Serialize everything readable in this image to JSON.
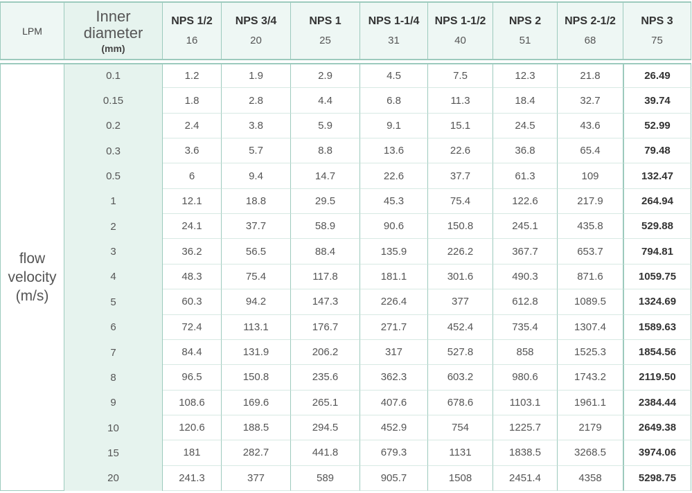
{
  "header": {
    "lpm": "LPM",
    "inner": "Inner diameter",
    "unit": "(mm)",
    "columns": [
      {
        "name": "NPS 1/2",
        "diameter": "16"
      },
      {
        "name": "NPS 3/4",
        "diameter": "20"
      },
      {
        "name": "NPS 1",
        "diameter": "25"
      },
      {
        "name": "NPS 1-1/4",
        "diameter": "31"
      },
      {
        "name": "NPS 1-1/2",
        "diameter": "40"
      },
      {
        "name": "NPS 2",
        "diameter": "51"
      },
      {
        "name": "NPS 2-1/2",
        "diameter": "68"
      },
      {
        "name": "NPS 3",
        "diameter": "75"
      }
    ]
  },
  "body": {
    "label": "flow velocity (m/s)",
    "rows": [
      {
        "velocity": "0.1",
        "values": [
          "1.2",
          "1.9",
          "2.9",
          "4.5",
          "7.5",
          "12.3",
          "21.8",
          "26.49"
        ]
      },
      {
        "velocity": "0.15",
        "values": [
          "1.8",
          "2.8",
          "4.4",
          "6.8",
          "11.3",
          "18.4",
          "32.7",
          "39.74"
        ]
      },
      {
        "velocity": "0.2",
        "values": [
          "2.4",
          "3.8",
          "5.9",
          "9.1",
          "15.1",
          "24.5",
          "43.6",
          "52.99"
        ]
      },
      {
        "velocity": "0.3",
        "values": [
          "3.6",
          "5.7",
          "8.8",
          "13.6",
          "22.6",
          "36.8",
          "65.4",
          "79.48"
        ]
      },
      {
        "velocity": "0.5",
        "values": [
          "6",
          "9.4",
          "14.7",
          "22.6",
          "37.7",
          "61.3",
          "109",
          "132.47"
        ]
      },
      {
        "velocity": "1",
        "values": [
          "12.1",
          "18.8",
          "29.5",
          "45.3",
          "75.4",
          "122.6",
          "217.9",
          "264.94"
        ]
      },
      {
        "velocity": "2",
        "values": [
          "24.1",
          "37.7",
          "58.9",
          "90.6",
          "150.8",
          "245.1",
          "435.8",
          "529.88"
        ]
      },
      {
        "velocity": "3",
        "values": [
          "36.2",
          "56.5",
          "88.4",
          "135.9",
          "226.2",
          "367.7",
          "653.7",
          "794.81"
        ]
      },
      {
        "velocity": "4",
        "values": [
          "48.3",
          "75.4",
          "117.8",
          "181.1",
          "301.6",
          "490.3",
          "871.6",
          "1059.75"
        ]
      },
      {
        "velocity": "5",
        "values": [
          "60.3",
          "94.2",
          "147.3",
          "226.4",
          "377",
          "612.8",
          "1089.5",
          "1324.69"
        ]
      },
      {
        "velocity": "6",
        "values": [
          "72.4",
          "113.1",
          "176.7",
          "271.7",
          "452.4",
          "735.4",
          "1307.4",
          "1589.63"
        ]
      },
      {
        "velocity": "7",
        "values": [
          "84.4",
          "131.9",
          "206.2",
          "317",
          "527.8",
          "858",
          "1525.3",
          "1854.56"
        ]
      },
      {
        "velocity": "8",
        "values": [
          "96.5",
          "150.8",
          "235.6",
          "362.3",
          "603.2",
          "980.6",
          "1743.2",
          "2119.50"
        ]
      },
      {
        "velocity": "9",
        "values": [
          "108.6",
          "169.6",
          "265.1",
          "407.6",
          "678.6",
          "1103.1",
          "1961.1",
          "2384.44"
        ]
      },
      {
        "velocity": "10",
        "values": [
          "120.6",
          "188.5",
          "294.5",
          "452.9",
          "754",
          "1225.7",
          "2179",
          "2649.38"
        ]
      },
      {
        "velocity": "15",
        "values": [
          "181",
          "282.7",
          "441.8",
          "679.3",
          "1131",
          "1838.5",
          "3268.5",
          "3974.06"
        ]
      },
      {
        "velocity": "20",
        "values": [
          "241.3",
          "377",
          "589",
          "905.7",
          "1508",
          "2451.4",
          "4358",
          "5298.75"
        ]
      }
    ]
  }
}
